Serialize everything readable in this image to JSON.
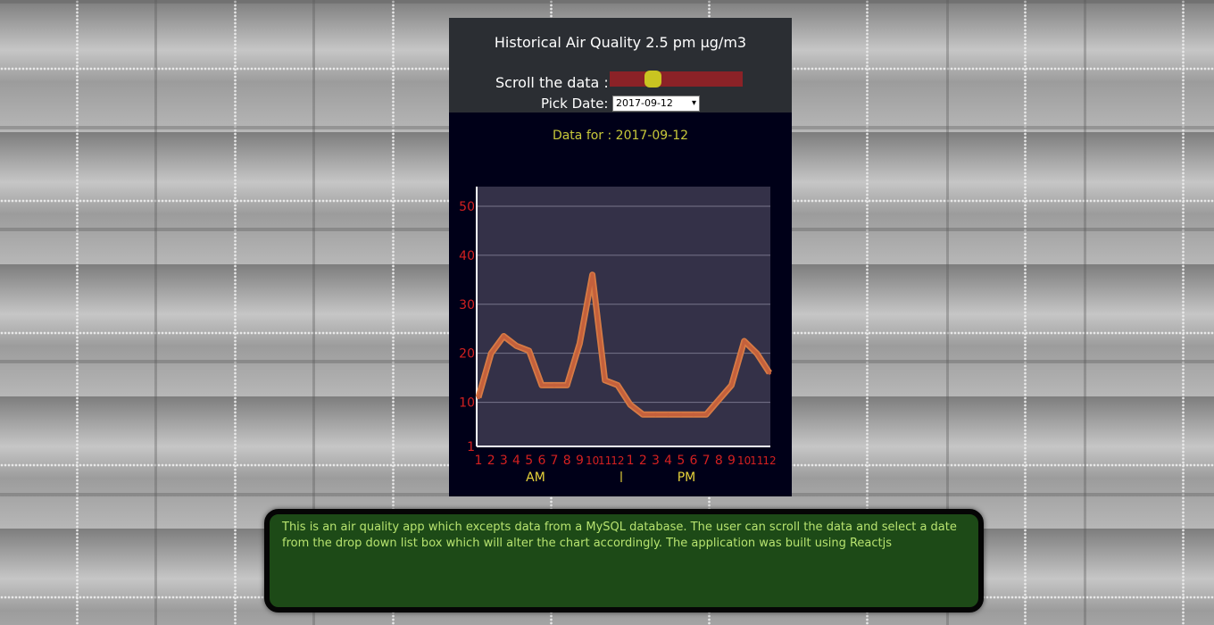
{
  "panel": {
    "title": "Historical Air Quality 2.5 pm µg/m3",
    "scroll_label": "Scroll the data :",
    "scroll_position": 0.3,
    "date_label": "Pick Date:",
    "selected_date": "2017-09-12",
    "data_for": "Data for : 2017-09-12"
  },
  "chart_data": {
    "type": "line",
    "x": [
      "1",
      "2",
      "3",
      "4",
      "5",
      "6",
      "7",
      "8",
      "9",
      "10",
      "11",
      "12",
      "1",
      "2",
      "3",
      "4",
      "5",
      "6",
      "7",
      "8",
      "9",
      "10",
      "11",
      "12"
    ],
    "series": [
      {
        "values": [
          11,
          20,
          23.5,
          21.5,
          20.5,
          13.5,
          13.5,
          13.5,
          22,
          36,
          14.5,
          13.5,
          9.5,
          7.5,
          7.5,
          7.5,
          7.5,
          7.5,
          7.5,
          10.5,
          13.5,
          22.5,
          20,
          16
        ]
      }
    ],
    "yticks": [
      "1",
      "10",
      "20",
      "30",
      "40",
      "50"
    ],
    "ytick_values": [
      1,
      10,
      20,
      30,
      40,
      50
    ],
    "ylim": [
      1,
      54
    ],
    "grid": true,
    "am_label": "AM",
    "divider": "|",
    "pm_label": "PM"
  },
  "colors": {
    "line": "#c4603c",
    "line_glow": "#d67b45",
    "plot_bg": "#343148",
    "grid": "#77758a",
    "tick_red": "#d42020",
    "am_pm": "#e6d23a"
  },
  "info": {
    "text": "This is an air quality app which excepts data from a MySQL database.  The user can scroll the data and select a date from the drop down list box which will alter the chart accordingly. The application was built using Reactjs"
  }
}
